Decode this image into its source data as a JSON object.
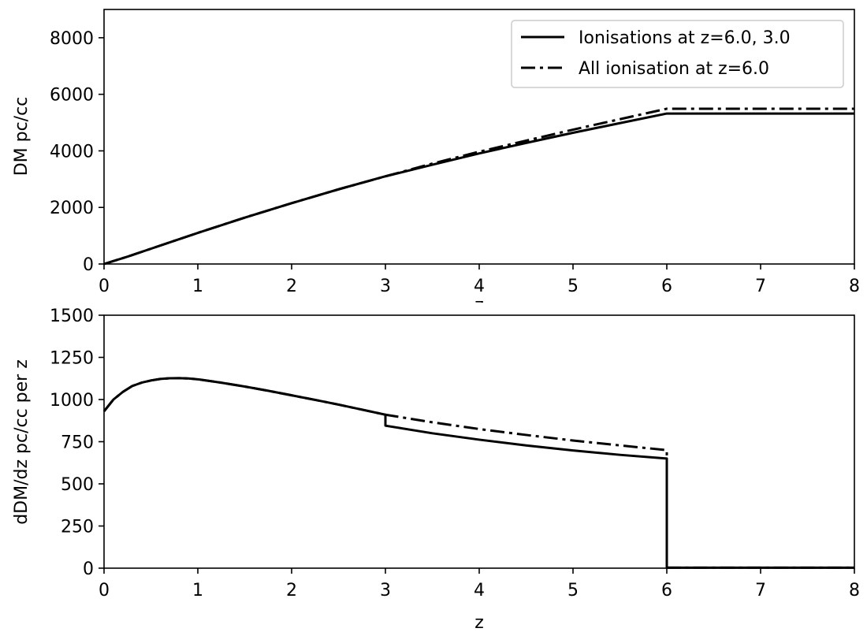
{
  "chart_data": [
    {
      "type": "line",
      "title": "",
      "xlabel": "z",
      "ylabel": "DM pc/cc",
      "xlim": [
        0,
        8
      ],
      "ylim": [
        0,
        9000
      ],
      "xticks": [
        0,
        1,
        2,
        3,
        4,
        5,
        6,
        7,
        8
      ],
      "yticks": [
        0,
        2000,
        4000,
        6000,
        8000
      ],
      "grid": false,
      "legend": "top-right",
      "series": [
        {
          "name": "Ionisations at z=6.0, 3.0",
          "style": "solid",
          "color": "#000000",
          "x": [
            0,
            0.25,
            0.5,
            0.75,
            1,
            1.5,
            2,
            2.5,
            3,
            3.5,
            4,
            4.5,
            5,
            5.5,
            6,
            6.5,
            7,
            7.5,
            8
          ],
          "y": [
            0,
            260,
            540,
            820,
            1100,
            1640,
            2150,
            2640,
            3100,
            3510,
            3910,
            4280,
            4640,
            4980,
            5320,
            5320,
            5320,
            5320,
            5320
          ]
        },
        {
          "name": "All ionisation at z=6.0",
          "style": "dashdot",
          "color": "#000000",
          "x": [
            0,
            0.25,
            0.5,
            0.75,
            1,
            1.5,
            2,
            2.5,
            3,
            3.5,
            4,
            4.5,
            5,
            5.5,
            6,
            6.5,
            7,
            7.5,
            8
          ],
          "y": [
            0,
            260,
            540,
            820,
            1100,
            1640,
            2150,
            2640,
            3100,
            3550,
            3970,
            4360,
            4750,
            5120,
            5490,
            5490,
            5490,
            5490,
            5490
          ]
        }
      ]
    },
    {
      "type": "line",
      "title": "",
      "xlabel": "z",
      "ylabel": "dDM/dz pc/cc per z",
      "xlim": [
        0,
        8
      ],
      "ylim": [
        0,
        1500
      ],
      "xticks": [
        0,
        1,
        2,
        3,
        4,
        5,
        6,
        7,
        8
      ],
      "yticks": [
        0,
        250,
        500,
        750,
        1000,
        1250,
        1500
      ],
      "grid": false,
      "series": [
        {
          "name": "",
          "style": "solid",
          "color": "#000000",
          "x": [
            0,
            0.1,
            0.2,
            0.3,
            0.4,
            0.5,
            0.6,
            0.7,
            0.8,
            0.9,
            1.0,
            1.25,
            1.5,
            1.75,
            2.0,
            2.25,
            2.5,
            2.75,
            3.0,
            3.0,
            3.5,
            4.0,
            4.5,
            5.0,
            5.5,
            6.0,
            6.0,
            6.5,
            7.0,
            7.5,
            8.0
          ],
          "y": [
            930,
            1000,
            1045,
            1080,
            1100,
            1113,
            1122,
            1126,
            1127,
            1125,
            1120,
            1100,
            1077,
            1052,
            1025,
            998,
            970,
            940,
            910,
            845,
            800,
            762,
            728,
            698,
            672,
            650,
            3,
            3,
            3,
            3,
            3
          ]
        },
        {
          "name": "",
          "style": "dashdot",
          "color": "#000000",
          "x": [
            0,
            0.1,
            0.2,
            0.3,
            0.4,
            0.5,
            0.6,
            0.7,
            0.8,
            0.9,
            1.0,
            1.25,
            1.5,
            1.75,
            2.0,
            2.25,
            2.5,
            2.75,
            3.0,
            3.5,
            4.0,
            4.5,
            5.0,
            5.5,
            6.0,
            6.0,
            6.5,
            7.0,
            7.5,
            8.0
          ],
          "y": [
            930,
            1000,
            1045,
            1080,
            1100,
            1113,
            1122,
            1126,
            1127,
            1125,
            1120,
            1100,
            1077,
            1052,
            1025,
            998,
            970,
            940,
            910,
            865,
            825,
            790,
            757,
            728,
            700,
            3,
            3,
            3,
            3,
            3
          ]
        }
      ]
    }
  ]
}
